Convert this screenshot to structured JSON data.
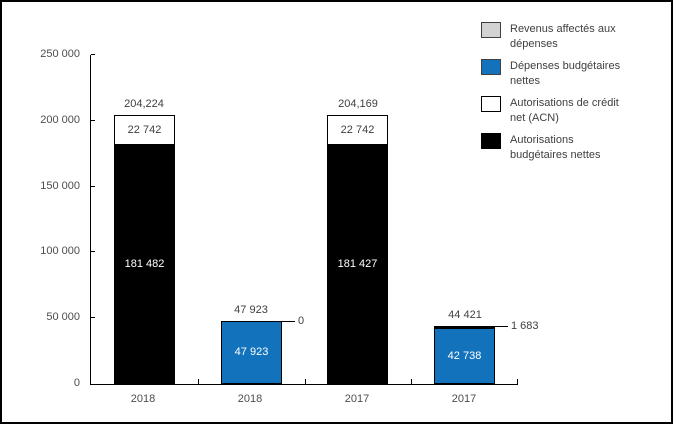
{
  "colors": {
    "blue": "#1272bc",
    "gray": "#d3d3d3",
    "black": "#000000",
    "white": "#ffffff",
    "axis": "#000000",
    "text": "#404040",
    "axis_text": "#4d4d4d"
  },
  "legend": {
    "items": [
      {
        "lines": [
          "Revenus affectés aux",
          "dépenses"
        ],
        "color_key": "gray"
      },
      {
        "lines": [
          "Dépenses budgétaires",
          "nettes"
        ],
        "color_key": "blue"
      },
      {
        "lines": [
          "Autorisations de crédit",
          "net (ACN)"
        ],
        "color_key": "white"
      },
      {
        "lines": [
          "Autorisations",
          "budgétaires nettes"
        ],
        "color_key": "black"
      }
    ]
  },
  "chart_data": {
    "type": "bar",
    "stacked": true,
    "title": "",
    "xlabel": "",
    "ylabel": "",
    "ylim": [
      0,
      250000
    ],
    "grid": false,
    "legend_position": "top-right",
    "yticks": [
      {
        "value": 0,
        "label": "0"
      },
      {
        "value": 50000,
        "label": "50 000"
      },
      {
        "value": 100000,
        "label": "100 000"
      },
      {
        "value": 150000,
        "label": "150 000"
      },
      {
        "value": 200000,
        "label": "200 000"
      },
      {
        "value": 250000,
        "label": "250 000"
      }
    ],
    "categories": [
      "2018",
      "2018",
      "2017",
      "2017"
    ],
    "series": [
      {
        "name": "Revenus affectés aux dépenses",
        "values": [
          0,
          0,
          0,
          1683
        ]
      },
      {
        "name": "Dépenses budgétaires nettes",
        "values": [
          0,
          47923,
          0,
          42738
        ]
      },
      {
        "name": "Autorisations de crédit net (ACN)",
        "values": [
          22742,
          0,
          22742,
          0
        ]
      },
      {
        "name": "Autorisations budgétaires nettes",
        "values": [
          181482,
          0,
          181427,
          0
        ]
      }
    ],
    "bars": [
      {
        "category": "2018",
        "total": 204224,
        "total_label": "204,224",
        "segments": [
          {
            "series": "Autorisations budgétaires nettes",
            "value": 181482,
            "label": "181 482",
            "color_key": "black",
            "label_color": "#ffffff"
          },
          {
            "series": "Autorisations de crédit net (ACN)",
            "value": 22742,
            "label": "22 742",
            "color_key": "white",
            "label_color": "#404040"
          }
        ]
      },
      {
        "category": "2018",
        "total": 47923,
        "total_label": "47 923",
        "segments": [
          {
            "series": "Dépenses budgétaires nettes",
            "value": 47923,
            "label": "47 923",
            "color_key": "blue",
            "label_color": "#ffffff"
          }
        ],
        "callout_label": "0"
      },
      {
        "category": "2017",
        "total": 204169,
        "total_label": "204,169",
        "segments": [
          {
            "series": "Autorisations budgétaires nettes",
            "value": 181427,
            "label": "181 427",
            "color_key": "black",
            "label_color": "#ffffff"
          },
          {
            "series": "Autorisations de crédit net (ACN)",
            "value": 22742,
            "label": "22 742",
            "color_key": "white",
            "label_color": "#404040"
          }
        ]
      },
      {
        "category": "2017",
        "total": 44421,
        "total_label": "44 421",
        "segments": [
          {
            "series": "Dépenses budgétaires nettes",
            "value": 42738,
            "label": "42 738",
            "color_key": "blue",
            "label_color": "#ffffff"
          },
          {
            "series": "Revenus affectés aux dépenses",
            "value": 1683,
            "label": "",
            "color_key": "gray",
            "label_color": "#404040"
          }
        ],
        "callout_label": "1 683"
      }
    ]
  }
}
